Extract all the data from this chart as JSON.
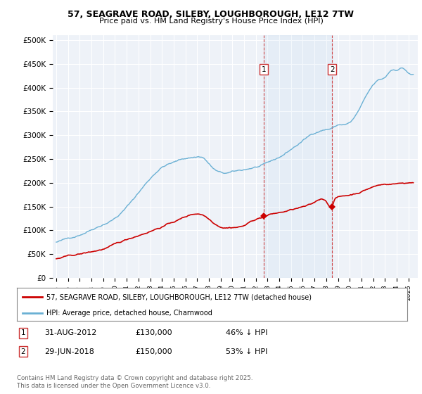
{
  "title": "57, SEAGRAVE ROAD, SILEBY, LOUGHBOROUGH, LE12 7TW",
  "subtitle": "Price paid vs. HM Land Registry's House Price Index (HPI)",
  "ylabel_ticks": [
    "£0",
    "£50K",
    "£100K",
    "£150K",
    "£200K",
    "£250K",
    "£300K",
    "£350K",
    "£400K",
    "£450K",
    "£500K"
  ],
  "ytick_values": [
    0,
    50000,
    100000,
    150000,
    200000,
    250000,
    300000,
    350000,
    400000,
    450000,
    500000
  ],
  "ylim": [
    0,
    510000
  ],
  "hpi_color": "#6ab0d4",
  "price_color": "#cc0000",
  "background_color": "#ffffff",
  "plot_bg_color": "#eef2f8",
  "grid_color": "#ffffff",
  "sale1_price": 130000,
  "sale1_label": "31-AUG-2012",
  "sale1_pct": "46% ↓ HPI",
  "sale2_price": 150000,
  "sale2_label": "29-JUN-2018",
  "sale2_pct": "53% ↓ HPI",
  "legend_red": "57, SEAGRAVE ROAD, SILEBY, LOUGHBOROUGH, LE12 7TW (detached house)",
  "legend_blue": "HPI: Average price, detached house, Charnwood",
  "footer": "Contains HM Land Registry data © Crown copyright and database right 2025.\nThis data is licensed under the Open Government Licence v3.0."
}
